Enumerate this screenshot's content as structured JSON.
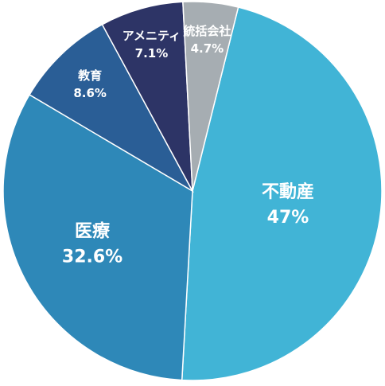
{
  "chart_data": {
    "type": "pie",
    "categories": [
      "不動産",
      "医療",
      "教育",
      "アメニティ",
      "統括会社"
    ],
    "values": [
      47,
      32.6,
      8.6,
      7.1,
      4.7
    ],
    "value_labels": [
      "47%",
      "32.6%",
      "8.6%",
      "7.1%",
      "4.7%"
    ],
    "colors": [
      "#41b4d6",
      "#2e88b8",
      "#2a5e96",
      "#2d3466",
      "#a6adb2"
    ]
  }
}
